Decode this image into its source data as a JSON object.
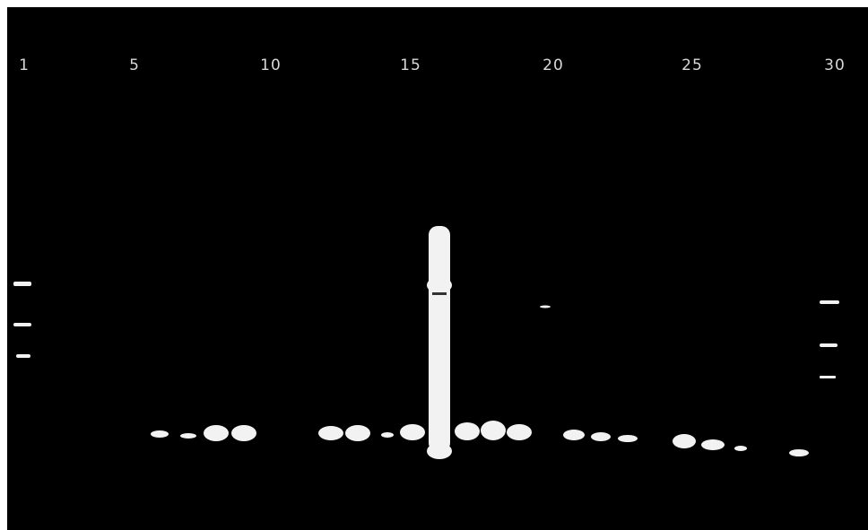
{
  "lane_labels": [
    "1",
    "5",
    "10",
    "15",
    "20",
    "25",
    "30"
  ]
}
